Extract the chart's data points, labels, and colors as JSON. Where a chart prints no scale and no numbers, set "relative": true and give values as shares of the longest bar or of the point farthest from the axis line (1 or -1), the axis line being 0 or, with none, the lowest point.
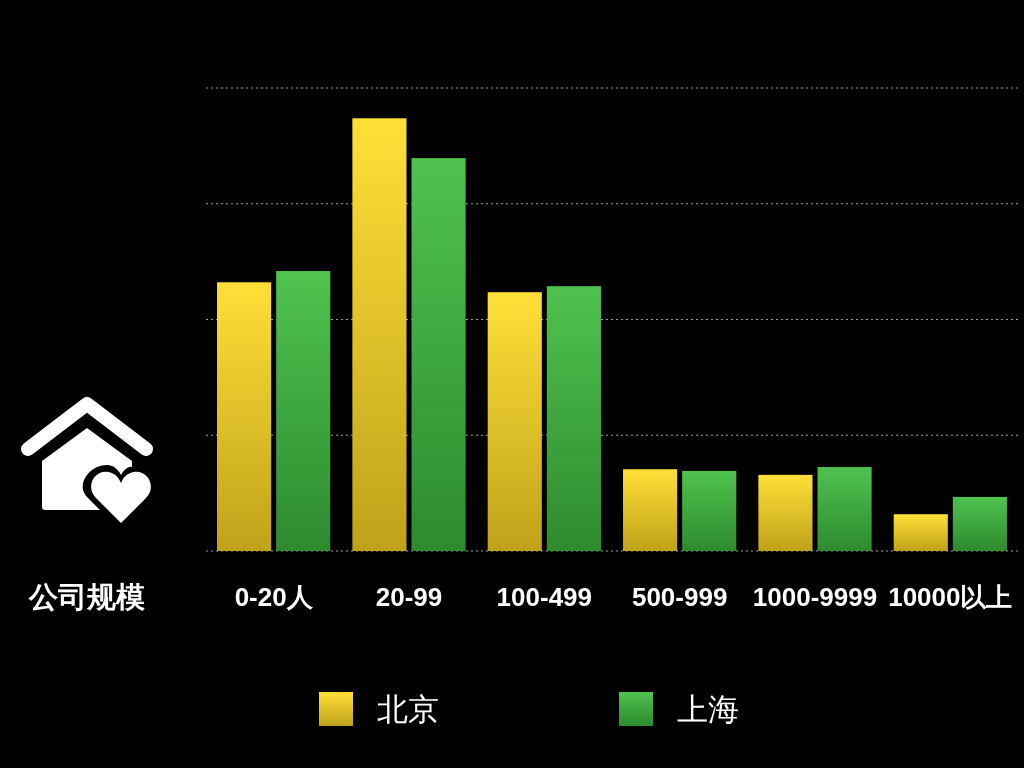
{
  "chart_data": {
    "type": "bar",
    "relative": true,
    "xlabel": "公司规模",
    "categories": [
      "0-20人",
      "20-99",
      "100-499",
      "500-999",
      "1000-9999",
      "10000以上"
    ],
    "series": [
      {
        "name": "北京",
        "color": "#e3c123",
        "values": [
          0.621,
          1,
          0.598,
          0.189,
          0.176,
          0.085
        ]
      },
      {
        "name": "上海",
        "color": "#3aa63a",
        "values": [
          0.647,
          0.908,
          0.612,
          0.185,
          0.194,
          0.125
        ]
      }
    ],
    "grid": "y",
    "legend": "bottom"
  }
}
